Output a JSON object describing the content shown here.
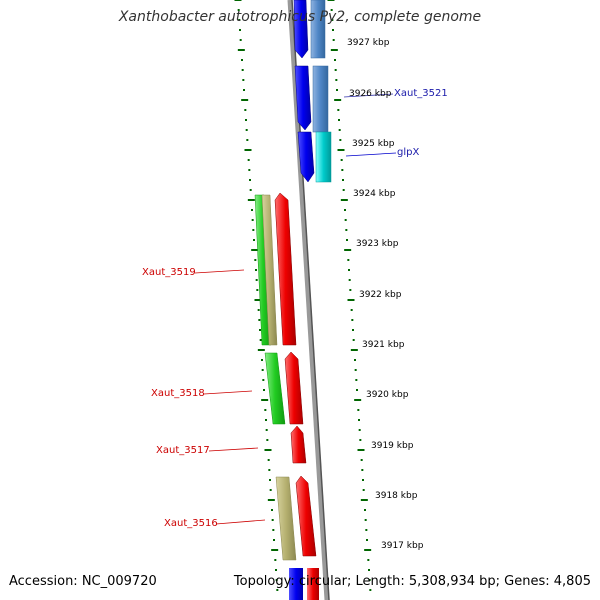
{
  "title": "Xanthobacter autotrophicus Py2, complete genome",
  "footer": {
    "accession": "Accession: NC_009720",
    "topology": "Topology: circular; Length: 5,308,934 bp; Genes: 4,805"
  },
  "ticks": [
    "3927 kbp",
    "3926 kbp",
    "3925 kbp",
    "3924 kbp",
    "3923 kbp",
    "3922 kbp",
    "3921 kbp",
    "3920 kbp",
    "3919 kbp",
    "3918 kbp",
    "3917 kbp"
  ],
  "genes_right": [
    "Xaut_3521",
    "glpX"
  ],
  "genes_left": [
    "Xaut_3519",
    "Xaut_3518",
    "Xaut_3517",
    "Xaut_3516"
  ],
  "colors": {
    "forward_cds": "#0000ee",
    "reverse_cds": "#ee0000",
    "steelblue_feature": "#4f86c6",
    "cyan_feature": "#00cccc",
    "green_feature": "#22cc22",
    "khaki_feature": "#b5b070",
    "backbone": "#888888",
    "tick_marks": "#006600"
  }
}
